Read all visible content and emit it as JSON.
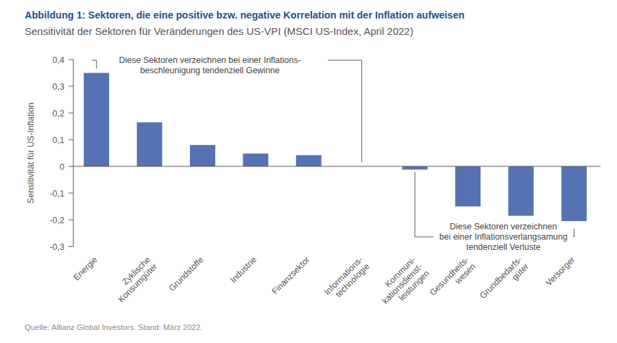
{
  "chart_data": {
    "type": "bar",
    "title": "Abbildung 1: Sektoren, die eine positive bzw. negative Korrelation mit der Inflation aufweisen",
    "subtitle": "Sensitivität der Sektoren für Veränderungen des US-VPI (MSCI US-Index, April 2022)",
    "y_label": "Sensitivität für US-Inflation",
    "categories": [
      "Energie",
      "Zyklische\nKonsumgüter",
      "Grundstoffe",
      "Industrie",
      "Finanzsektor",
      "Informations-\ntechnologie",
      "Kommuni-\nkationsdienst-\nleistungen",
      "Gesundheits-\nwesen",
      "Grundbedarfs-\ngüter",
      "Versorger"
    ],
    "values": [
      0.35,
      0.165,
      0.08,
      0.048,
      0.042,
      0,
      -0.012,
      -0.15,
      -0.185,
      -0.205
    ],
    "color": "#5573b3",
    "ylim": [
      -0.3,
      0.4
    ],
    "yticks": [
      {
        "value": -0.3,
        "label": "-0,3"
      },
      {
        "value": -0.2,
        "label": "-0,2"
      },
      {
        "value": -0.1,
        "label": "-0,1"
      },
      0,
      {
        "value": 0.1,
        "label": "0,1"
      },
      {
        "value": 0.2,
        "label": "0,2"
      },
      {
        "value": 0.3,
        "label": "0,3"
      },
      {
        "value": 0.4,
        "label": "0,4"
      }
    ],
    "grid": false,
    "annotations": [
      [
        "Diese Sektoren verzeichnen bei einer Inflations-",
        "beschleunigung tendenziell Gewinne"
      ],
      [
        "Diese Sektoren verzeichnen",
        "bei einer Inflationsverlangsamung",
        "tendenziell Verluste"
      ]
    ],
    "source": "Quelle: Allianz Global Investors. Stand: März 2022."
  }
}
